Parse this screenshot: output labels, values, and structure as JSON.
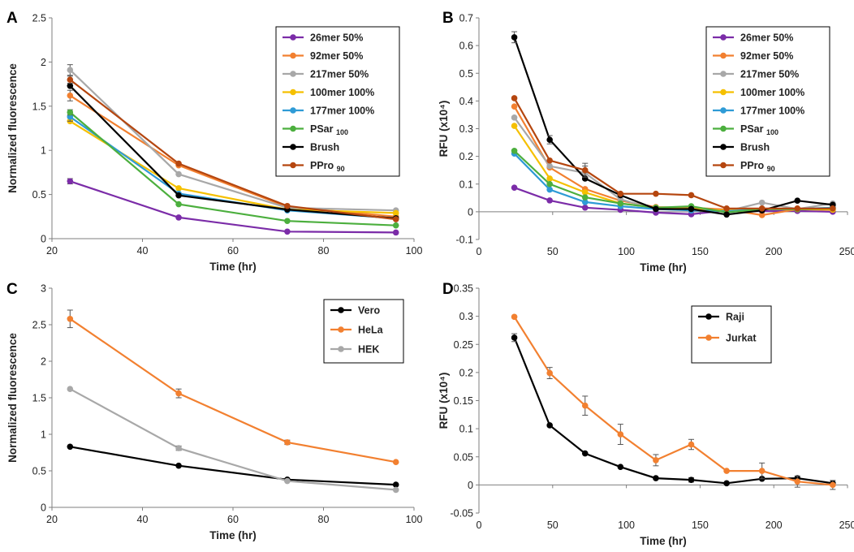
{
  "chart_data": [
    {
      "panel": "A",
      "type": "line",
      "xlabel": "Time (hr)",
      "ylabel": "Normalized fluorescence",
      "xlim": [
        20,
        100
      ],
      "ylim": [
        0,
        2.5
      ],
      "xticks": [
        "20",
        "40",
        "60",
        "80",
        "100"
      ],
      "yticks": [
        "0",
        "0.5",
        "1",
        "1.5",
        "2",
        "2.5"
      ],
      "legend_position": "top-right",
      "x": [
        24,
        48,
        72,
        96
      ],
      "series": [
        {
          "name": "26mer 50%",
          "name_sub": "",
          "color": "#7B2CA8",
          "values": [
            0.65,
            0.24,
            0.08,
            0.07
          ],
          "errors": [
            0.03,
            0,
            0,
            0
          ]
        },
        {
          "name": "92mer 50%",
          "name_sub": "",
          "color": "#F28030",
          "values": [
            1.62,
            0.83,
            0.36,
            0.25
          ],
          "errors": [
            0.06,
            0,
            0,
            0
          ]
        },
        {
          "name": "217mer 50%",
          "name_sub": "",
          "color": "#A8A8A8",
          "values": [
            1.91,
            0.73,
            0.35,
            0.32
          ],
          "errors": [
            0.06,
            0,
            0,
            0
          ]
        },
        {
          "name": "100mer 100%",
          "name_sub": "",
          "color": "#F5C000",
          "values": [
            1.33,
            0.57,
            0.33,
            0.29
          ],
          "errors": [
            0,
            0,
            0,
            0
          ]
        },
        {
          "name": "177mer 100%",
          "name_sub": "",
          "color": "#2E9BD6",
          "values": [
            1.38,
            0.51,
            0.32,
            0.23
          ],
          "errors": [
            0.05,
            0,
            0,
            0
          ]
        },
        {
          "name": "PSar ",
          "name_sub": "100",
          "color": "#4CAF3E",
          "values": [
            1.43,
            0.39,
            0.2,
            0.15
          ],
          "errors": [
            0.03,
            0,
            0,
            0
          ]
        },
        {
          "name": "Brush",
          "name_sub": "",
          "color": "#000000",
          "values": [
            1.73,
            0.49,
            0.33,
            0.23
          ],
          "errors": [
            0,
            0,
            0,
            0
          ]
        },
        {
          "name": "PPro ",
          "name_sub": "90",
          "color": "#B5460F",
          "values": [
            1.8,
            0.85,
            0.37,
            0.22
          ],
          "errors": [
            0.04,
            0,
            0,
            0
          ]
        }
      ]
    },
    {
      "panel": "B",
      "type": "line",
      "xlabel": "Time (hr)",
      "ylabel": "RFU (x10⁴)",
      "xlim": [
        0,
        250
      ],
      "ylim": [
        -0.1,
        0.7
      ],
      "xticks": [
        "0",
        "50",
        "100",
        "150",
        "200",
        "250"
      ],
      "yticks": [
        "-0.1",
        "0",
        "0.1",
        "0.2",
        "0.3",
        "0.4",
        "0.5",
        "0.6",
        "0.7"
      ],
      "legend_position": "top-right",
      "x": [
        24,
        48,
        72,
        96,
        120,
        144,
        168,
        192,
        216,
        240
      ],
      "series": [
        {
          "name": "26mer 50%",
          "name_sub": "",
          "color": "#7B2CA8",
          "values": [
            0.087,
            0.041,
            0.015,
            0.007,
            -0.003,
            -0.009,
            0.005,
            0.003,
            0.003,
            0.0
          ],
          "errors": [
            0,
            0,
            0,
            0,
            0,
            0,
            0,
            0,
            0,
            0
          ]
        },
        {
          "name": "92mer 50%",
          "name_sub": "",
          "color": "#F28030",
          "values": [
            0.38,
            0.16,
            0.082,
            0.04,
            0.017,
            0.015,
            0.008,
            -0.012,
            0.009,
            0.007
          ],
          "errors": [
            0,
            0,
            0,
            0,
            0,
            0,
            0,
            0,
            0,
            0
          ]
        },
        {
          "name": "217mer 50%",
          "name_sub": "",
          "color": "#A8A8A8",
          "values": [
            0.34,
            0.165,
            0.14,
            0.045,
            0.01,
            0.01,
            0.002,
            0.033,
            0.01,
            0.03
          ],
          "errors": [
            0,
            0,
            0.025,
            0,
            0,
            0,
            0,
            0,
            0,
            0
          ]
        },
        {
          "name": "100mer 100%",
          "name_sub": "",
          "color": "#F5C000",
          "values": [
            0.31,
            0.12,
            0.07,
            0.03,
            0.015,
            0.01,
            0.004,
            0.01,
            0.009,
            0.008
          ],
          "errors": [
            0,
            0,
            0,
            0,
            0,
            0,
            0,
            0,
            0,
            0
          ]
        },
        {
          "name": "177mer 100%",
          "name_sub": "",
          "color": "#2E9BD6",
          "values": [
            0.21,
            0.08,
            0.035,
            0.02,
            0.01,
            0.005,
            0.002,
            0.01,
            0.01,
            0.015
          ],
          "errors": [
            0,
            0,
            0,
            0,
            0,
            0,
            0,
            0,
            0,
            0
          ]
        },
        {
          "name": "PSar ",
          "name_sub": "100",
          "color": "#4CAF3E",
          "values": [
            0.22,
            0.1,
            0.052,
            0.03,
            0.015,
            0.02,
            -0.002,
            0.01,
            0.01,
            0.012
          ],
          "errors": [
            0,
            0,
            0,
            0,
            0,
            0,
            0,
            0,
            0,
            0
          ]
        },
        {
          "name": "Brush",
          "name_sub": "",
          "color": "#000000",
          "values": [
            0.63,
            0.26,
            0.12,
            0.06,
            0.01,
            0.01,
            -0.01,
            0.005,
            0.04,
            0.025
          ],
          "errors": [
            0.02,
            0.015,
            0,
            0,
            0,
            0,
            0,
            0,
            0,
            0
          ]
        },
        {
          "name": "PPro ",
          "name_sub": "90",
          "color": "#B5460F",
          "values": [
            0.41,
            0.185,
            0.15,
            0.065,
            0.065,
            0.06,
            0.012,
            0.012,
            0.012,
            0.012
          ],
          "errors": [
            0,
            0,
            0.025,
            0,
            0,
            0,
            0,
            0,
            0,
            0
          ]
        }
      ]
    },
    {
      "panel": "C",
      "type": "line",
      "xlabel": "Time (hr)",
      "ylabel": "Normalized fluorescence",
      "xlim": [
        20,
        100
      ],
      "ylim": [
        0,
        3
      ],
      "xticks": [
        "20",
        "40",
        "60",
        "80",
        "100"
      ],
      "yticks": [
        "0",
        "0.5",
        "1",
        "1.5",
        "2",
        "2.5",
        "3"
      ],
      "legend_position": "top-right",
      "x": [
        24,
        48,
        72,
        96
      ],
      "series": [
        {
          "name": "Vero",
          "name_sub": "",
          "color": "#000000",
          "values": [
            0.83,
            0.57,
            0.38,
            0.31
          ],
          "errors": [
            0,
            0,
            0,
            0
          ]
        },
        {
          "name": "HeLa",
          "name_sub": "",
          "color": "#F28030",
          "values": [
            2.58,
            1.56,
            0.89,
            0.62
          ],
          "errors": [
            0.12,
            0.06,
            0.03,
            0
          ]
        },
        {
          "name": "HEK",
          "name_sub": "",
          "color": "#A8A8A8",
          "values": [
            1.62,
            0.81,
            0.36,
            0.24
          ],
          "errors": [
            0,
            0.03,
            0,
            0
          ]
        }
      ]
    },
    {
      "panel": "D",
      "type": "line",
      "xlabel": "Time (hr)",
      "ylabel": "RFU (x10⁴)",
      "xlim": [
        0,
        250
      ],
      "ylim": [
        -0.05,
        0.35
      ],
      "xticks": [
        "0",
        "50",
        "100",
        "150",
        "200",
        "250"
      ],
      "yticks": [
        "-0.05",
        "0",
        "0.05",
        "0.1",
        "0.15",
        "0.2",
        "0.25",
        "0.3",
        "0.35"
      ],
      "legend_position": "top-right",
      "x": [
        24,
        48,
        72,
        96,
        120,
        144,
        168,
        192,
        216,
        240
      ],
      "series": [
        {
          "name": "Raji",
          "name_sub": "",
          "color": "#000000",
          "values": [
            0.262,
            0.106,
            0.056,
            0.032,
            0.012,
            0.009,
            0.003,
            0.011,
            0.012,
            0.003
          ],
          "errors": [
            0.007,
            0,
            0,
            0,
            0,
            0.004,
            0,
            0,
            0,
            0
          ]
        },
        {
          "name": "Jurkat",
          "name_sub": "",
          "color": "#F28030",
          "values": [
            0.299,
            0.199,
            0.141,
            0.09,
            0.044,
            0.072,
            0.025,
            0.025,
            0.006,
            0.0
          ],
          "errors": [
            0,
            0.01,
            0.017,
            0.018,
            0.01,
            0.009,
            0,
            0.014,
            0.01,
            0.008
          ]
        }
      ]
    }
  ]
}
